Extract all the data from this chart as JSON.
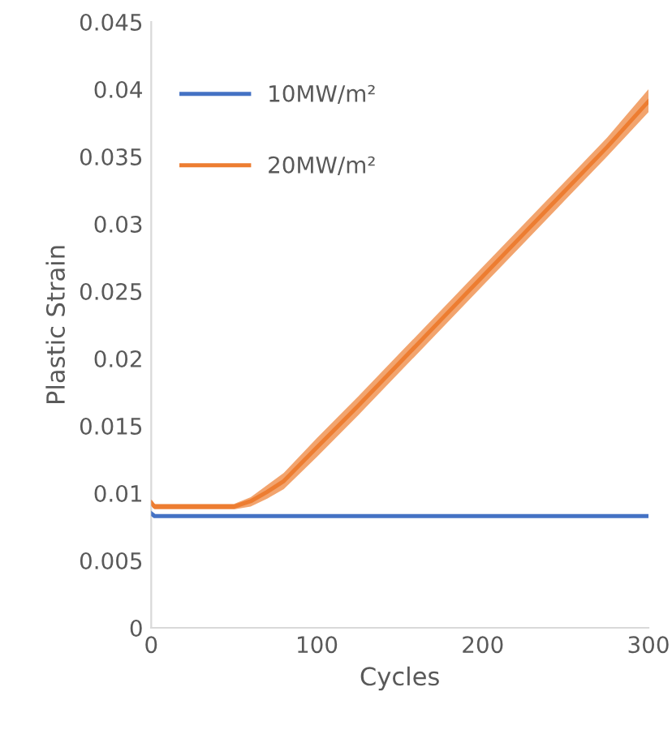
{
  "chart_data": {
    "type": "line",
    "xlabel": "Cycles",
    "ylabel": "Plastic Strain",
    "xlim": [
      0,
      300
    ],
    "xticks": [
      0,
      100,
      200,
      300
    ],
    "ylim": [
      0,
      0.045
    ],
    "yticks": [
      0,
      0.005,
      0.01,
      0.015,
      0.02,
      0.025,
      0.03,
      0.035,
      0.04,
      0.045
    ],
    "grid": false,
    "legend": "top left",
    "marker": "none",
    "line_style": "solid",
    "series": [
      {
        "name": "10MW/m²",
        "color": "#4472c4",
        "x": [
          0,
          2,
          300
        ],
        "values": [
          0.0085,
          0.0083,
          0.0083
        ]
      },
      {
        "name": "20MW/m²",
        "color": "#ed7d31",
        "x": [
          0,
          2,
          50,
          60,
          70,
          80,
          100,
          125,
          150,
          175,
          200,
          225,
          250,
          275,
          300
        ],
        "values": [
          0.0093,
          0.009,
          0.009,
          0.0094,
          0.0101,
          0.0109,
          0.0134,
          0.0165,
          0.0197,
          0.0229,
          0.0261,
          0.0293,
          0.0325,
          0.0357,
          0.0391
        ],
        "lower": [
          0.0091,
          0.0088,
          0.0088,
          0.009,
          0.0096,
          0.0103,
          0.0127,
          0.0158,
          0.019,
          0.0222,
          0.0254,
          0.0286,
          0.0318,
          0.035,
          0.0383
        ],
        "upper": [
          0.0095,
          0.0092,
          0.0092,
          0.0097,
          0.0106,
          0.0115,
          0.0141,
          0.0172,
          0.0204,
          0.0236,
          0.0268,
          0.03,
          0.0332,
          0.0364,
          0.04
        ]
      }
    ]
  }
}
